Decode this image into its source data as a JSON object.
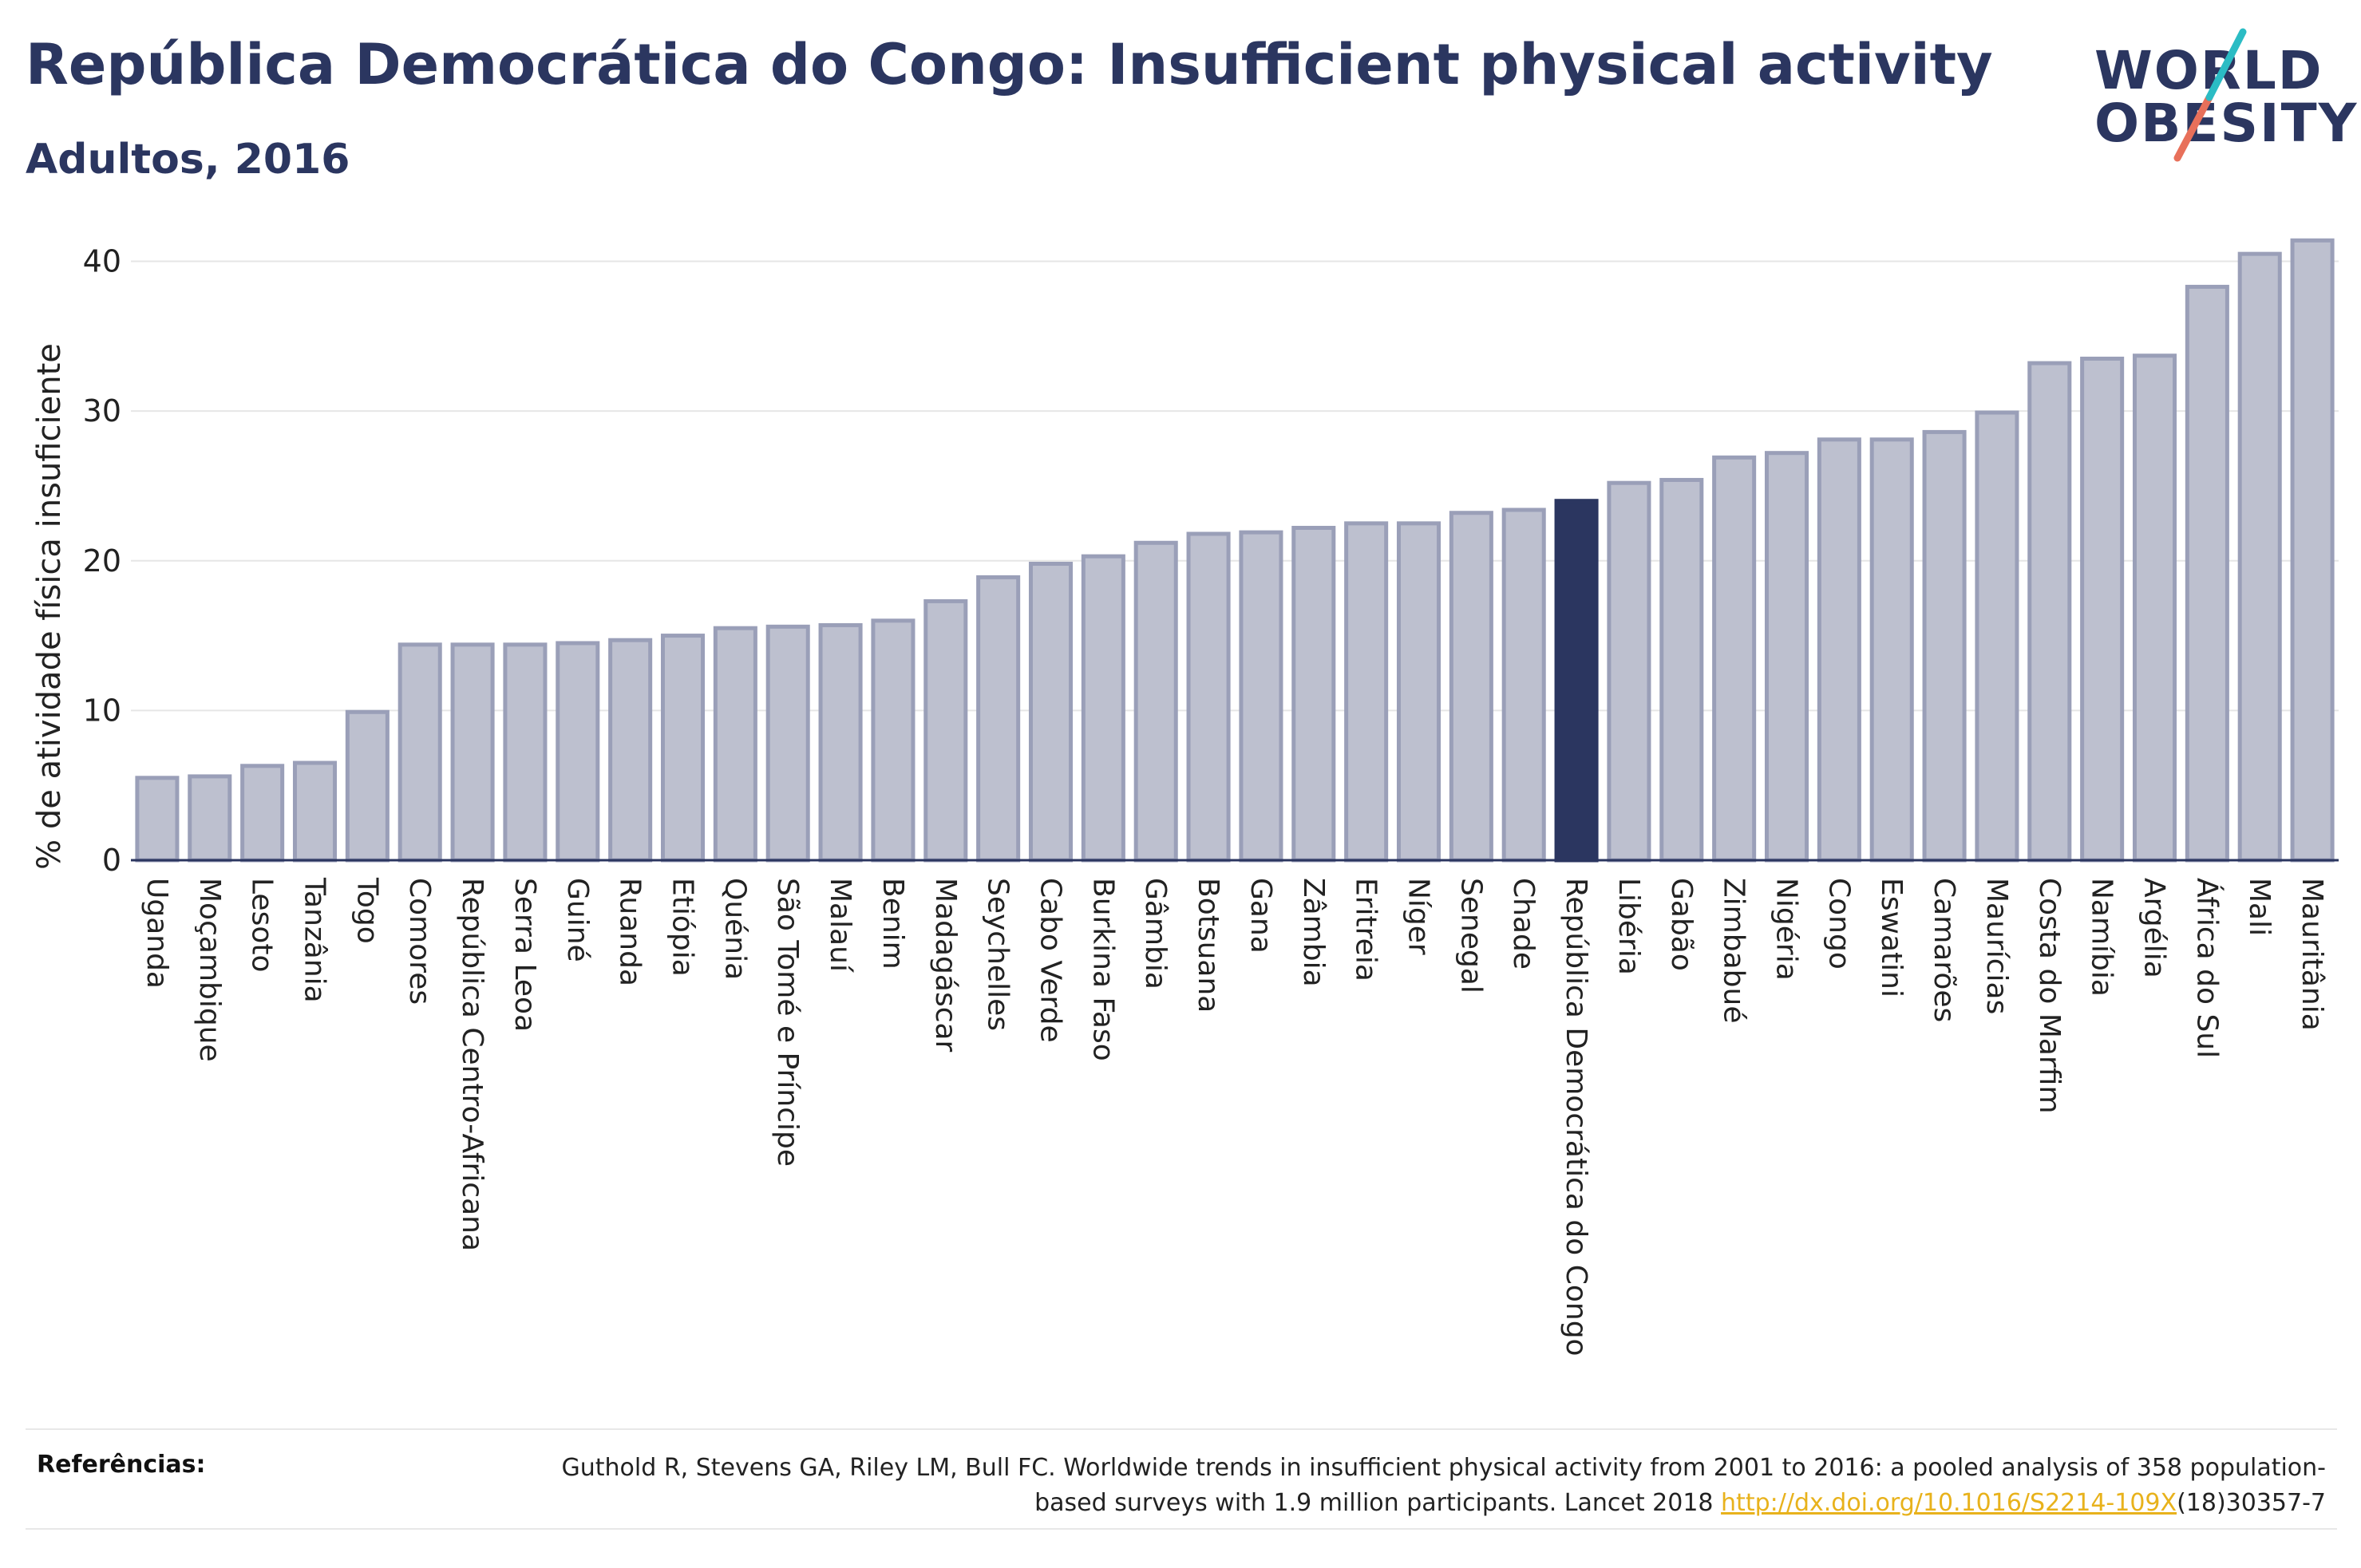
{
  "title": "República Democrática do Congo: Insufficient physical activity",
  "subtitle": "Adultos, 2016",
  "logo": {
    "line1": "WORLD",
    "line2": "OBESITY",
    "text": "WORLD OBESITY"
  },
  "colors": {
    "bar": "#bdc0cf",
    "bar_stroke": "#9a9fb8",
    "highlight": "#2b3660",
    "accent_teal": "#2bbcc4",
    "accent_coral": "#e8705a",
    "link": "#e8b21c"
  },
  "references": {
    "label": "Referências:",
    "text_before": "Guthold R, Stevens GA, Riley LM, Bull FC. Worldwide trends in insufficient physical activity from 2001 to 2016: a pooled analysis of 358 population-based surveys with 1.9 million participants. Lancet 2018 ",
    "link_text": "http://dx.doi.org/10.1016/S2214-109X",
    "text_after": "(18)30357-7"
  },
  "chart_data": {
    "type": "bar",
    "ylabel": "% de atividade física insuficiente",
    "ylim": [
      0,
      42
    ],
    "yticks": [
      0,
      10,
      20,
      30,
      40
    ],
    "grid": true,
    "highlight": "República Democrática do Congo",
    "categories": [
      "Uganda",
      "Moçambique",
      "Lesoto",
      "Tanzânia",
      "Togo",
      "Comores",
      "República Centro-Africana",
      "Serra Leoa",
      "Guiné",
      "Ruanda",
      "Etiópia",
      "Quénia",
      "São Tomé e Príncipe",
      "Malauí",
      "Benim",
      "Madagáscar",
      "Seychelles",
      "Cabo Verde",
      "Burkina Faso",
      "Gâmbia",
      "Botsuana",
      "Gana",
      "Zâmbia",
      "Eritreia",
      "Níger",
      "Senegal",
      "Chade",
      "República Democrática do Congo",
      "Libéria",
      "Gabão",
      "Zimbabué",
      "Nigéria",
      "Congo",
      "Eswatini",
      "Camarões",
      "Maurícias",
      "Costa do Marfim",
      "Namíbia",
      "Argélia",
      "África do Sul",
      "Mali",
      "Mauritânia"
    ],
    "values": [
      5.5,
      5.6,
      6.3,
      6.5,
      9.9,
      14.4,
      14.4,
      14.4,
      14.5,
      14.7,
      15.0,
      15.5,
      15.6,
      15.7,
      16.0,
      17.3,
      18.9,
      19.8,
      20.3,
      21.2,
      21.8,
      21.9,
      22.2,
      22.5,
      22.5,
      23.2,
      23.4,
      24.0,
      25.2,
      25.4,
      26.9,
      27.2,
      28.1,
      28.1,
      28.6,
      29.9,
      33.2,
      33.5,
      33.7,
      38.3,
      40.5,
      41.4
    ]
  }
}
